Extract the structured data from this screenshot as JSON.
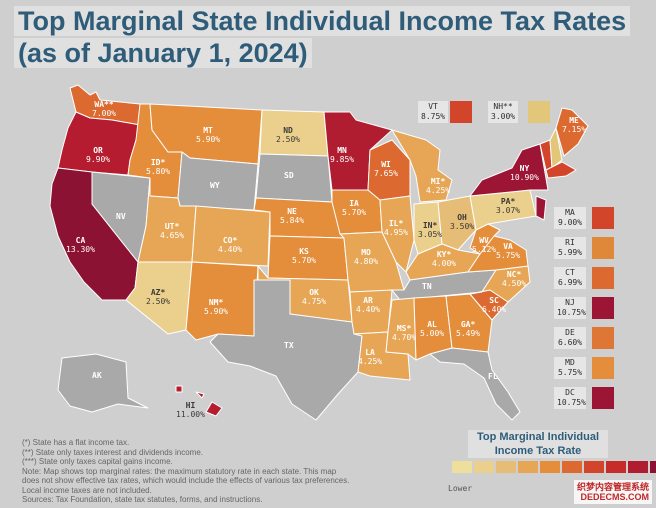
{
  "title": {
    "line1": "Top Marginal State Individual Income Tax Rates",
    "line2": "(as of January 1, 2024)"
  },
  "states": {
    "WA": {
      "abbr": "WA**",
      "rate": "7.00%"
    },
    "OR": {
      "abbr": "OR",
      "rate": "9.90%"
    },
    "CA": {
      "abbr": "CA",
      "rate": "13.30%"
    },
    "NV": {
      "abbr": "NV",
      "rate": ""
    },
    "ID": {
      "abbr": "ID*",
      "rate": "5.80%"
    },
    "MT": {
      "abbr": "MT",
      "rate": "5.90%"
    },
    "WY": {
      "abbr": "WY",
      "rate": ""
    },
    "UT": {
      "abbr": "UT*",
      "rate": "4.65%"
    },
    "AZ": {
      "abbr": "AZ*",
      "rate": "2.50%"
    },
    "CO": {
      "abbr": "CO*",
      "rate": "4.40%"
    },
    "NM": {
      "abbr": "NM*",
      "rate": "5.90%"
    },
    "ND": {
      "abbr": "ND",
      "rate": "2.50%"
    },
    "SD": {
      "abbr": "SD",
      "rate": ""
    },
    "NE": {
      "abbr": "NE",
      "rate": "5.84%"
    },
    "KS": {
      "abbr": "KS",
      "rate": "5.70%"
    },
    "OK": {
      "abbr": "OK",
      "rate": "4.75%"
    },
    "TX": {
      "abbr": "TX",
      "rate": ""
    },
    "MN": {
      "abbr": "MN",
      "rate": "9.85%"
    },
    "IA": {
      "abbr": "IA",
      "rate": "5.70%"
    },
    "MO": {
      "abbr": "MO",
      "rate": "4.80%"
    },
    "AR": {
      "abbr": "AR",
      "rate": "4.40%"
    },
    "LA": {
      "abbr": "LA",
      "rate": "4.25%"
    },
    "WI": {
      "abbr": "WI",
      "rate": "7.65%"
    },
    "IL": {
      "abbr": "IL*",
      "rate": "4.95%"
    },
    "MI": {
      "abbr": "MI*",
      "rate": "4.25%"
    },
    "IN": {
      "abbr": "IN*",
      "rate": "3.05%"
    },
    "OH": {
      "abbr": "OH",
      "rate": "3.50%"
    },
    "KY": {
      "abbr": "KY*",
      "rate": "4.00%"
    },
    "TN": {
      "abbr": "TN",
      "rate": ""
    },
    "MS": {
      "abbr": "MS*",
      "rate": "4.70%"
    },
    "AL": {
      "abbr": "AL",
      "rate": "5.00%"
    },
    "GA": {
      "abbr": "GA*",
      "rate": "5.49%"
    },
    "FL": {
      "abbr": "FL",
      "rate": ""
    },
    "SC": {
      "abbr": "SC",
      "rate": "6.40%"
    },
    "NC": {
      "abbr": "NC*",
      "rate": "4.50%"
    },
    "VA": {
      "abbr": "VA",
      "rate": "5.75%"
    },
    "WV": {
      "abbr": "WV",
      "rate": "5.12%"
    },
    "PA": {
      "abbr": "PA*",
      "rate": "3.07%"
    },
    "NY": {
      "abbr": "NY",
      "rate": "10.90%"
    },
    "ME": {
      "abbr": "ME",
      "rate": "7.15%"
    },
    "AK": {
      "abbr": "AK",
      "rate": ""
    },
    "HI": {
      "abbr": "HI",
      "rate": "11.00%"
    }
  },
  "callouts": [
    {
      "abbr": "VT",
      "rate": "8.75%",
      "color": "#d2452a"
    },
    {
      "abbr": "NH**",
      "rate": "3.00%",
      "color": "#e2c77a"
    }
  ],
  "small_states": [
    {
      "abbr": "MA",
      "rate": "9.00%",
      "color": "#d2452a"
    },
    {
      "abbr": "RI",
      "rate": "5.99%",
      "color": "#e0883a"
    },
    {
      "abbr": "CT",
      "rate": "6.99%",
      "color": "#dc6a30"
    },
    {
      "abbr": "NJ",
      "rate": "10.75%",
      "color": "#9d1534"
    },
    {
      "abbr": "DE",
      "rate": "6.60%",
      "color": "#de7735"
    },
    {
      "abbr": "MD",
      "rate": "5.75%",
      "color": "#e48e3c"
    },
    {
      "abbr": "DC",
      "rate": "10.75%",
      "color": "#9d1534"
    }
  ],
  "notes": [
    "(*) State has a flat income tax.",
    "(**) State only taxes interest and dividends income.",
    "(***) State only taxes capital gains income.",
    "Note: Map shows top marginal rates: the maximum statutory rate in each state. This map",
    "does not show effective tax rates, which would include the effects of various tax preferences.",
    "Local income taxes are not included.",
    "Sources: Tax Foundation, state tax statutes, forms, and instructions."
  ],
  "legend": {
    "title": "Top Marginal Individual Income Tax Rate",
    "low_label": "Lower",
    "ramp": [
      "#efdf9c",
      "#ead08c",
      "#e6bd76",
      "#e6a656",
      "#e48e3c",
      "#dc6a30",
      "#d2452a",
      "#c62c2a",
      "#b01d30",
      "#8c1233"
    ]
  },
  "watermark": {
    "line1": "织梦内容管理系统",
    "line2": "DEDECMS.COM"
  },
  "colors": {
    "title": "#2f5d79",
    "no_tax": "#a9a9a9",
    "background": "#cfcfcf"
  }
}
